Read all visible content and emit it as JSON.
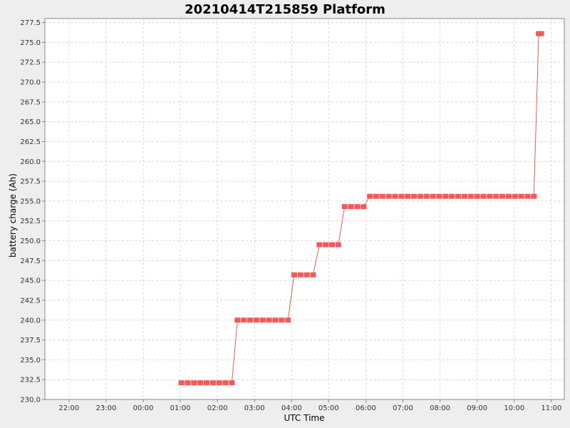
{
  "chart_data": {
    "type": "line",
    "title": "20210414T215859 Platform",
    "xlabel": "UTC Time",
    "ylabel": "battery charge (Ah)",
    "x_unit": "hours (UTC, relative to 00:00 on x-axis)",
    "xlim": [
      -2.65,
      11.35
    ],
    "ylim": [
      230.0,
      278.0
    ],
    "grid": true,
    "legend": "none",
    "colors": {
      "series": "#f05a5a",
      "plot_bg": "#ffffff",
      "grid": "#d8d8d8",
      "frame": "#888888",
      "page_bg": "#eeeeee"
    },
    "x_ticks": [
      {
        "value": -2,
        "label": "22:00"
      },
      {
        "value": -1,
        "label": "23:00"
      },
      {
        "value": 0,
        "label": "00:00"
      },
      {
        "value": 1,
        "label": "01:00"
      },
      {
        "value": 2,
        "label": "02:00"
      },
      {
        "value": 3,
        "label": "03:00"
      },
      {
        "value": 4,
        "label": "04:00"
      },
      {
        "value": 5,
        "label": "05:00"
      },
      {
        "value": 6,
        "label": "06:00"
      },
      {
        "value": 7,
        "label": "07:00"
      },
      {
        "value": 8,
        "label": "08:00"
      },
      {
        "value": 9,
        "label": "09:00"
      },
      {
        "value": 10,
        "label": "10:00"
      },
      {
        "value": 11,
        "label": "11:00"
      }
    ],
    "y_ticks": [
      {
        "value": 230.0,
        "label": "230.0"
      },
      {
        "value": 232.5,
        "label": "232.5"
      },
      {
        "value": 235.0,
        "label": "235.0"
      },
      {
        "value": 237.5,
        "label": "237.5"
      },
      {
        "value": 240.0,
        "label": "240.0"
      },
      {
        "value": 242.5,
        "label": "242.5"
      },
      {
        "value": 245.0,
        "label": "245.0"
      },
      {
        "value": 247.5,
        "label": "247.5"
      },
      {
        "value": 250.0,
        "label": "250.0"
      },
      {
        "value": 252.5,
        "label": "252.5"
      },
      {
        "value": 255.0,
        "label": "255.0"
      },
      {
        "value": 257.5,
        "label": "257.5"
      },
      {
        "value": 260.0,
        "label": "260.0"
      },
      {
        "value": 262.5,
        "label": "262.5"
      },
      {
        "value": 265.0,
        "label": "265.0"
      },
      {
        "value": 267.5,
        "label": "267.5"
      },
      {
        "value": 270.0,
        "label": "270.0"
      },
      {
        "value": 272.5,
        "label": "272.5"
      },
      {
        "value": 275.0,
        "label": "275.0"
      },
      {
        "value": 277.5,
        "label": "277.5"
      }
    ],
    "series": [
      {
        "points": [
          [
            1.03,
            232.1
          ],
          [
            1.2,
            232.1
          ],
          [
            1.37,
            232.1
          ],
          [
            1.54,
            232.1
          ],
          [
            1.71,
            232.1
          ],
          [
            1.88,
            232.1
          ],
          [
            2.05,
            232.1
          ],
          [
            2.22,
            232.1
          ],
          [
            2.39,
            232.1
          ],
          [
            2.54,
            240.0
          ],
          [
            2.71,
            240.0
          ],
          [
            2.88,
            240.0
          ],
          [
            3.05,
            240.0
          ],
          [
            3.22,
            240.0
          ],
          [
            3.39,
            240.0
          ],
          [
            3.56,
            240.0
          ],
          [
            3.73,
            240.0
          ],
          [
            3.9,
            240.0
          ],
          [
            4.07,
            245.7
          ],
          [
            4.24,
            245.7
          ],
          [
            4.41,
            245.7
          ],
          [
            4.58,
            245.7
          ],
          [
            4.75,
            249.5
          ],
          [
            4.92,
            249.5
          ],
          [
            5.09,
            249.5
          ],
          [
            5.26,
            249.5
          ],
          [
            5.43,
            254.3
          ],
          [
            5.6,
            254.3
          ],
          [
            5.77,
            254.3
          ],
          [
            5.94,
            254.3
          ],
          [
            6.11,
            255.6
          ],
          [
            6.28,
            255.6
          ],
          [
            6.45,
            255.6
          ],
          [
            6.62,
            255.6
          ],
          [
            6.79,
            255.6
          ],
          [
            6.96,
            255.6
          ],
          [
            7.13,
            255.6
          ],
          [
            7.3,
            255.6
          ],
          [
            7.47,
            255.6
          ],
          [
            7.64,
            255.6
          ],
          [
            7.81,
            255.6
          ],
          [
            7.98,
            255.6
          ],
          [
            8.15,
            255.6
          ],
          [
            8.32,
            255.6
          ],
          [
            8.49,
            255.6
          ],
          [
            8.66,
            255.6
          ],
          [
            8.83,
            255.6
          ],
          [
            9.0,
            255.6
          ],
          [
            9.17,
            255.6
          ],
          [
            9.34,
            255.6
          ],
          [
            9.51,
            255.6
          ],
          [
            9.68,
            255.6
          ],
          [
            9.85,
            255.6
          ],
          [
            10.02,
            255.6
          ],
          [
            10.19,
            255.6
          ],
          [
            10.36,
            255.6
          ],
          [
            10.53,
            255.6
          ],
          [
            10.66,
            276.1
          ],
          [
            10.73,
            276.1
          ]
        ]
      }
    ]
  }
}
